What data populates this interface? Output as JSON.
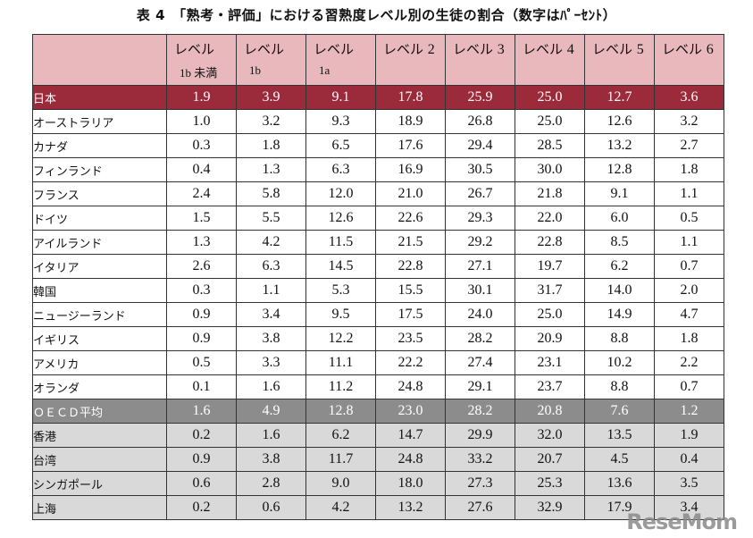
{
  "title": "表 4　「熟考・評価」における習熟度レベル別の生徒の割合（数字はﾊﾟｰｾﾝﾄ）",
  "columns": [
    {
      "label": "レベル",
      "sub": "1b 未満"
    },
    {
      "label": "レベル",
      "sub": "1b"
    },
    {
      "label": "レベル",
      "sub": "1a"
    },
    {
      "label": "レベル",
      "num": "2"
    },
    {
      "label": "レベル",
      "num": "3"
    },
    {
      "label": "レベル",
      "num": "4"
    },
    {
      "label": "レベル",
      "num": "5"
    },
    {
      "label": "レベル",
      "num": "6"
    }
  ],
  "rows": [
    {
      "name": "日本",
      "values": [
        "1.9",
        "3.9",
        "9.1",
        "17.8",
        "25.9",
        "25.0",
        "12.7",
        "3.6"
      ],
      "style": "japan"
    },
    {
      "name": "オーストラリア",
      "values": [
        "1.0",
        "3.2",
        "9.3",
        "18.9",
        "26.8",
        "25.0",
        "12.6",
        "3.2"
      ],
      "style": "plain"
    },
    {
      "name": "カナダ",
      "values": [
        "0.3",
        "1.8",
        "6.5",
        "17.6",
        "29.4",
        "28.5",
        "13.2",
        "2.7"
      ],
      "style": "plain"
    },
    {
      "name": "フィンランド",
      "values": [
        "0.4",
        "1.3",
        "6.3",
        "16.9",
        "30.5",
        "30.0",
        "12.8",
        "1.8"
      ],
      "style": "plain"
    },
    {
      "name": "フランス",
      "values": [
        "2.4",
        "5.8",
        "12.0",
        "21.0",
        "26.7",
        "21.8",
        "9.1",
        "1.1"
      ],
      "style": "plain"
    },
    {
      "name": "ドイツ",
      "values": [
        "1.5",
        "5.5",
        "12.6",
        "22.6",
        "29.3",
        "22.0",
        "6.0",
        "0.5"
      ],
      "style": "plain"
    },
    {
      "name": "アイルランド",
      "values": [
        "1.3",
        "4.2",
        "11.5",
        "21.5",
        "29.2",
        "22.8",
        "8.5",
        "1.1"
      ],
      "style": "plain"
    },
    {
      "name": "イタリア",
      "values": [
        "2.6",
        "6.3",
        "14.5",
        "22.8",
        "27.1",
        "19.7",
        "6.2",
        "0.7"
      ],
      "style": "plain"
    },
    {
      "name": "韓国",
      "values": [
        "0.3",
        "1.1",
        "5.3",
        "15.5",
        "30.1",
        "31.7",
        "14.0",
        "2.0"
      ],
      "style": "plain"
    },
    {
      "name": "ニュージーランド",
      "values": [
        "0.9",
        "3.4",
        "9.5",
        "17.5",
        "24.0",
        "25.0",
        "14.9",
        "4.7"
      ],
      "style": "plain"
    },
    {
      "name": "イギリス",
      "values": [
        "0.9",
        "3.8",
        "12.2",
        "23.5",
        "28.2",
        "20.9",
        "8.8",
        "1.8"
      ],
      "style": "plain"
    },
    {
      "name": "アメリカ",
      "values": [
        "0.5",
        "3.3",
        "11.1",
        "22.2",
        "27.4",
        "23.1",
        "10.2",
        "2.2"
      ],
      "style": "plain"
    },
    {
      "name": "オランダ",
      "values": [
        "0.1",
        "1.6",
        "11.2",
        "24.8",
        "29.1",
        "23.7",
        "8.8",
        "0.7"
      ],
      "style": "plain"
    },
    {
      "name": "ＯＥＣＤ平均",
      "values": [
        "1.6",
        "4.9",
        "12.8",
        "23.0",
        "28.2",
        "20.8",
        "7.6",
        "1.2"
      ],
      "style": "oecd"
    },
    {
      "name": "香港",
      "values": [
        "0.2",
        "1.6",
        "6.2",
        "14.7",
        "29.9",
        "32.0",
        "13.5",
        "1.9"
      ],
      "style": "asia"
    },
    {
      "name": "台湾",
      "values": [
        "0.9",
        "3.8",
        "11.7",
        "24.8",
        "33.2",
        "20.7",
        "4.5",
        "0.4"
      ],
      "style": "asia"
    },
    {
      "name": "シンガポール",
      "values": [
        "0.6",
        "2.8",
        "9.0",
        "18.0",
        "27.3",
        "25.3",
        "13.6",
        "3.5"
      ],
      "style": "asia"
    },
    {
      "name": "上海",
      "values": [
        "0.2",
        "0.6",
        "4.2",
        "13.2",
        "27.6",
        "32.9",
        "17.9",
        "3.4"
      ],
      "style": "asia"
    }
  ],
  "watermark": "ReseMom",
  "colors": {
    "header": "#e8b8bd",
    "japan": "#9b2a3a",
    "oecd": "#8c8c8c",
    "asia": "#d9d9d9"
  }
}
